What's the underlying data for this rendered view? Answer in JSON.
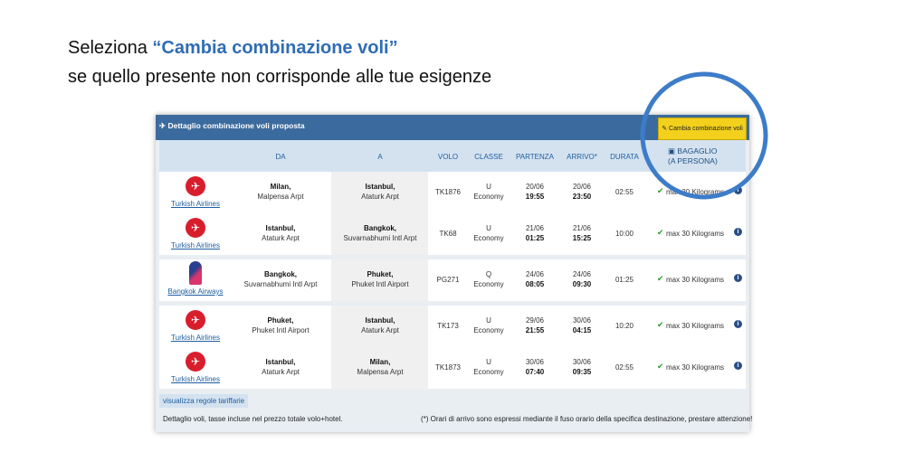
{
  "heading": {
    "prefix": "Seleziona ",
    "highlight": "“Cambia combinazione voli”",
    "line2": "se quello presente non corrisponde alle tue esigenze"
  },
  "panel": {
    "title": "Dettaglio combinazione voli proposta",
    "button": "Cambia combinazione voli",
    "columns": [
      "DA",
      "A",
      "VOLO",
      "CLASSE",
      "PARTENZA",
      "ARRIVO*",
      "DURATA"
    ],
    "baggage_header": [
      "BAGAGLIO",
      "(A PERSONA)"
    ],
    "groups": [
      {
        "flights": [
          {
            "airline": "Turkish Airlines",
            "from_city": "Milan,",
            "from_airport": "Malpensa Arpt",
            "to_city": "Istanbul,",
            "to_airport": "Ataturk Arpt",
            "flight": "TK1876",
            "class_code": "U",
            "class_name": "Economy",
            "dep_date": "20/06",
            "dep_time": "19:55",
            "arr_date": "20/06",
            "arr_time": "23:50",
            "duration": "02:55",
            "baggage": "max 30 Kilograms"
          },
          {
            "airline": "Turkish Airlines",
            "from_city": "Istanbul,",
            "from_airport": "Ataturk Arpt",
            "to_city": "Bangkok,",
            "to_airport": "Suvarnabhumi Intl Arpt",
            "flight": "TK68",
            "class_code": "U",
            "class_name": "Economy",
            "dep_date": "21/06",
            "dep_time": "01:25",
            "arr_date": "21/06",
            "arr_time": "15:25",
            "duration": "10:00",
            "baggage": "max 30 Kilograms"
          }
        ]
      },
      {
        "flights": [
          {
            "airline": "Bangkok Airways",
            "from_city": "Bangkok,",
            "from_airport": "Suvarnabhumi Intl Arpt",
            "to_city": "Phuket,",
            "to_airport": "Phuket Intl Airport",
            "flight": "PG271",
            "class_code": "Q",
            "class_name": "Economy",
            "dep_date": "24/06",
            "dep_time": "08:05",
            "arr_date": "24/06",
            "arr_time": "09:30",
            "duration": "01:25",
            "baggage": "max 30 Kilograms"
          }
        ]
      },
      {
        "flights": [
          {
            "airline": "Turkish Airlines",
            "from_city": "Phuket,",
            "from_airport": "Phuket Intl Airport",
            "to_city": "Istanbul,",
            "to_airport": "Ataturk Arpt",
            "flight": "TK173",
            "class_code": "U",
            "class_name": "Economy",
            "dep_date": "29/06",
            "dep_time": "21:55",
            "arr_date": "30/06",
            "arr_time": "04:15",
            "duration": "10:20",
            "baggage": "max 30 Kilograms"
          },
          {
            "airline": "Turkish Airlines",
            "from_city": "Istanbul,",
            "from_airport": "Ataturk Arpt",
            "to_city": "Milan,",
            "to_airport": "Malpensa Arpt",
            "flight": "TK1873",
            "class_code": "U",
            "class_name": "Economy",
            "dep_date": "30/06",
            "dep_time": "07:40",
            "arr_date": "30/06",
            "arr_time": "09:35",
            "duration": "02:55",
            "baggage": "max 30 Kilograms"
          }
        ]
      }
    ],
    "rules_link": "visualizza regole tariffarie",
    "note_left": "Dettaglio voli, tasse incluse nel prezzo totale volo+hotel.",
    "note_right": "(*) Orari di arrivo sono espressi mediante il fuso orario della specifica destinazione, prestare attenzione!"
  }
}
